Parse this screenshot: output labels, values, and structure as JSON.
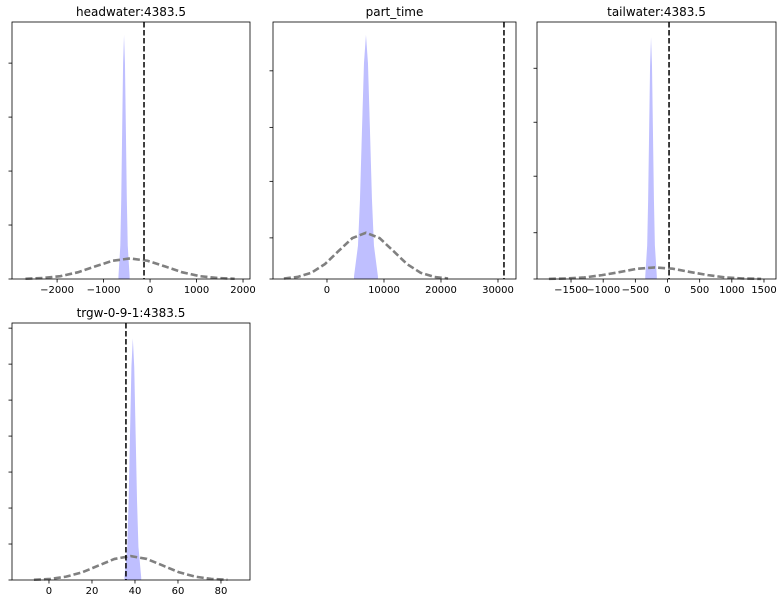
{
  "chart_data": [
    {
      "type": "area",
      "title": "headwater:4383.5",
      "xlim": [
        -2970,
        2150
      ],
      "ylim": [
        0,
        1
      ],
      "xticks": [
        {
          "value": -2000,
          "label": "−2000"
        },
        {
          "value": -1000,
          "label": "−1000"
        },
        0,
        1000,
        2000
      ],
      "yticks": [
        0,
        0.21,
        0.42,
        0.63,
        0.84
      ],
      "series": [
        {
          "style": "fill",
          "color": "#bfbfff",
          "x": [
            -680,
            -640,
            -620,
            -600,
            -580,
            -560,
            -540,
            -520,
            -500,
            -480,
            -440
          ],
          "values": [
            0.01,
            0.13,
            0.31,
            0.58,
            0.84,
            0.95,
            0.84,
            0.58,
            0.31,
            0.13,
            0.01
          ]
        },
        {
          "style": "dashed",
          "color": "#808080",
          "x": [
            -2680,
            -2305,
            -1930,
            -1555,
            -1180,
            -805,
            -430,
            -55,
            320,
            695,
            1070,
            1445,
            1820
          ],
          "values": [
            0.001,
            0.004,
            0.011,
            0.026,
            0.049,
            0.071,
            0.08,
            0.071,
            0.049,
            0.026,
            0.011,
            0.004,
            0.001
          ]
        }
      ],
      "vline": -130
    },
    {
      "type": "area",
      "title": "part_time",
      "xlim": [
        -9470,
        33160
      ],
      "ylim": [
        0,
        1
      ],
      "xticks": [
        0,
        10000,
        20000,
        30000
      ],
      "yticks": [
        0,
        0.16,
        0.38,
        0.59,
        0.81
      ],
      "series": [
        {
          "style": "fill",
          "color": "#bfbfff",
          "x": [
            4740,
            5440,
            5790,
            6140,
            6490,
            6840,
            7190,
            7540,
            7890,
            8240,
            8940
          ],
          "values": [
            0.01,
            0.13,
            0.31,
            0.58,
            0.84,
            0.95,
            0.84,
            0.58,
            0.31,
            0.13,
            0.01
          ]
        },
        {
          "style": "dashed",
          "color": "#808080",
          "x": [
            -7560,
            -5160,
            -2760,
            -360,
            2040,
            4440,
            6840,
            9240,
            11640,
            14040,
            16440,
            18840,
            21240
          ],
          "values": [
            0.002,
            0.008,
            0.024,
            0.058,
            0.109,
            0.159,
            0.18,
            0.159,
            0.109,
            0.058,
            0.024,
            0.008,
            0.002
          ]
        }
      ],
      "vline": 31050
    },
    {
      "type": "area",
      "title": "tailwater:4383.5",
      "xlim": [
        -2029,
        1687
      ],
      "ylim": [
        0,
        1
      ],
      "xticks": [
        {
          "value": -1500,
          "label": "−1500"
        },
        {
          "value": -1000,
          "label": "−1000"
        },
        {
          "value": -500,
          "label": "−500"
        },
        0,
        500,
        1000,
        1500
      ],
      "yticks": [
        0,
        0.18,
        0.4,
        0.61,
        0.82
      ],
      "series": [
        {
          "style": "fill",
          "color": "#bfbfff",
          "x": [
            -346,
            -316,
            -301,
            -286,
            -271,
            -256,
            -241,
            -226,
            -211,
            -196,
            -166
          ],
          "values": [
            0.01,
            0.13,
            0.31,
            0.57,
            0.83,
            0.94,
            0.83,
            0.57,
            0.31,
            0.13,
            0.01
          ]
        },
        {
          "style": "dashed",
          "color": "#808080",
          "x": [
            -1844,
            -1569,
            -1294,
            -1019,
            -744,
            -469,
            -194,
            81,
            356,
            631,
            906,
            1181,
            1456
          ],
          "values": [
            0.0005,
            0.002,
            0.006,
            0.015,
            0.027,
            0.04,
            0.045,
            0.04,
            0.027,
            0.015,
            0.006,
            0.002,
            0.0005
          ]
        }
      ],
      "vline": 24
    },
    {
      "type": "area",
      "title": "trgw-0-9-1:4383.5",
      "xlim": [
        -17.2,
        93.5
      ],
      "ylim": [
        0,
        1
      ],
      "xticks": [
        0,
        20,
        40,
        60,
        80
      ],
      "yticks": [
        0,
        0.14,
        0.28,
        0.42,
        0.56,
        0.7,
        0.84,
        0.98
      ],
      "series": [
        {
          "style": "fill",
          "color": "#bfbfff",
          "x": [
            35.1,
            36.4,
            37.05,
            37.7,
            38.35,
            39,
            39.65,
            40.3,
            40.95,
            41.6,
            42.9
          ],
          "values": [
            0.01,
            0.13,
            0.31,
            0.57,
            0.83,
            0.94,
            0.83,
            0.57,
            0.31,
            0.13,
            0.01
          ]
        },
        {
          "style": "dashed",
          "color": "#808080",
          "x": [
            -7,
            0.5,
            8,
            15.5,
            23,
            30.5,
            38,
            45.5,
            53,
            60.5,
            68,
            75.5,
            83
          ],
          "values": [
            0.001,
            0.004,
            0.013,
            0.03,
            0.056,
            0.082,
            0.093,
            0.082,
            0.056,
            0.03,
            0.013,
            0.004,
            0.001
          ]
        }
      ],
      "vline": 35.8
    }
  ]
}
